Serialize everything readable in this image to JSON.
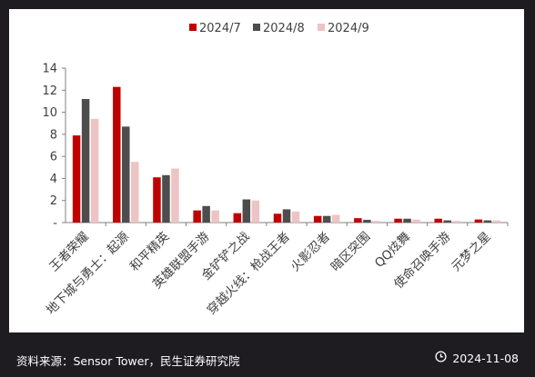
{
  "chart_data": {
    "type": "bar",
    "categories": [
      "王者荣耀",
      "地下城与勇士：起源",
      "和平精英",
      "英雄联盟手游",
      "金铲铲之战",
      "穿越火线：枪战王者",
      "火影忍者",
      "暗区突围",
      "QQ炫舞",
      "使命召唤手游",
      "元梦之星"
    ],
    "series": [
      {
        "name": "2024/7",
        "color": "#c00000",
        "values": [
          7.9,
          12.3,
          4.1,
          1.1,
          0.85,
          0.8,
          0.6,
          0.4,
          0.35,
          0.35,
          0.28
        ]
      },
      {
        "name": "2024/8",
        "color": "#4d4d4d",
        "values": [
          11.2,
          8.7,
          4.3,
          1.5,
          2.1,
          1.2,
          0.6,
          0.25,
          0.35,
          0.2,
          0.2
        ]
      },
      {
        "name": "2024/9",
        "color": "#edc4c4",
        "values": [
          9.4,
          5.5,
          4.9,
          1.1,
          2.0,
          1.0,
          0.7,
          0.15,
          0.28,
          0.15,
          0.2
        ]
      }
    ],
    "yticks": [
      "14",
      "12",
      "10",
      "8",
      "6",
      "4",
      "2",
      "-"
    ],
    "ylim": [
      0,
      14
    ],
    "grid": false,
    "legend": "top"
  },
  "footer": {
    "source": "资料来源：Sensor Tower，民生证券研究院",
    "date": "2024-11-08",
    "date_icon": "clock-icon"
  }
}
